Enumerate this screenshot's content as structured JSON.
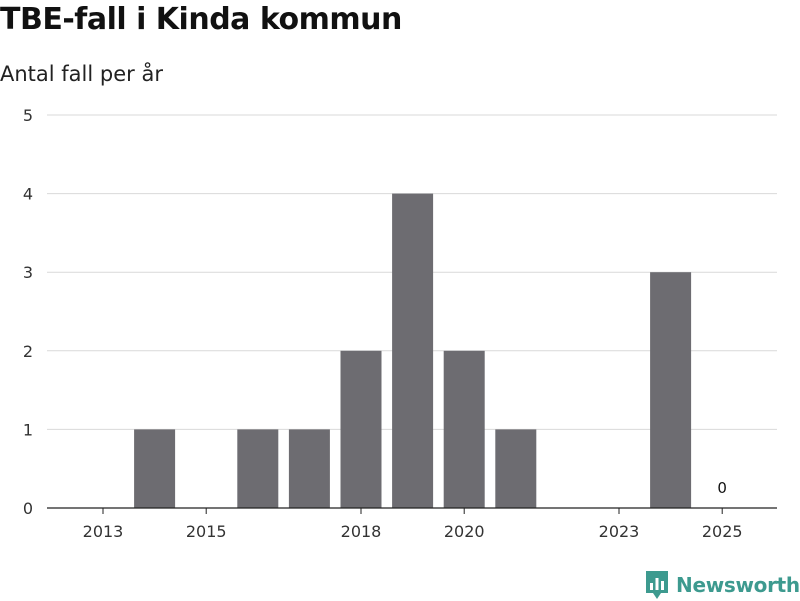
{
  "header": {
    "title": "TBE-fall i Kinda kommun",
    "subtitle": "Antal fall per år"
  },
  "brand": {
    "name": "Newsworthy",
    "logo_icon": "newsworthy-chart-icon",
    "color": "#3d9a8f"
  },
  "colors": {
    "bar": "#6d6c71",
    "grid": "#d9d9d9",
    "axis": "#222222"
  },
  "chart_data": {
    "type": "bar",
    "title": "TBE-fall i Kinda kommun",
    "subtitle": "Antal fall per år",
    "xlabel": "",
    "ylabel": "Antal fall per år",
    "categories": [
      "2013",
      "2014",
      "2015",
      "2016",
      "2017",
      "2018",
      "2019",
      "2020",
      "2021",
      "2022",
      "2023",
      "2024",
      "2025"
    ],
    "values": [
      0,
      1,
      0,
      1,
      1,
      2,
      4,
      2,
      1,
      0,
      0,
      3,
      0
    ],
    "ylim": [
      0,
      5
    ],
    "yticks": [
      0,
      1,
      2,
      3,
      4,
      5
    ],
    "xtick_labels": [
      "2013",
      "2015",
      "2018",
      "2020",
      "2023",
      "2025"
    ],
    "annotations": [
      {
        "category": "2025",
        "text": "0"
      }
    ],
    "grid": true,
    "legend": "none"
  }
}
